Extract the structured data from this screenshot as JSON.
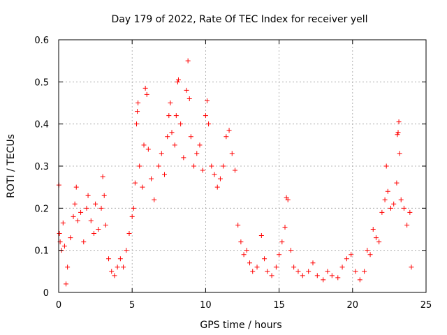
{
  "chart_data": {
    "type": "scatter",
    "title": "Day 179 of 2022, Rate Of TEC Index for receiver yell",
    "xlabel": "GPS time / hours",
    "ylabel": "ROTI / TECUs",
    "xlim": [
      0,
      25
    ],
    "ylim": [
      0,
      0.6
    ],
    "x_ticks": [
      "0",
      "5",
      "10",
      "15",
      "20",
      "25"
    ],
    "y_ticks": [
      "0",
      "0.1",
      "0.2",
      "0.3",
      "0.4",
      "0.5",
      "0.6"
    ],
    "x_tick_values": [
      0,
      5,
      10,
      15,
      20,
      25
    ],
    "y_tick_values": [
      0,
      0.1,
      0.2,
      0.3,
      0.4,
      0.5,
      0.6
    ],
    "grid": true,
    "marker": "+",
    "color": "#ff0000",
    "points": [
      [
        0.02,
        0.255
      ],
      [
        0.05,
        0.14
      ],
      [
        0.1,
        0.12
      ],
      [
        0.2,
        0.1
      ],
      [
        0.3,
        0.165
      ],
      [
        0.4,
        0.11
      ],
      [
        0.5,
        0.02
      ],
      [
        0.6,
        0.06
      ],
      [
        0.8,
        0.13
      ],
      [
        1.0,
        0.18
      ],
      [
        1.1,
        0.21
      ],
      [
        1.2,
        0.25
      ],
      [
        1.3,
        0.17
      ],
      [
        1.5,
        0.19
      ],
      [
        1.7,
        0.12
      ],
      [
        1.9,
        0.2
      ],
      [
        2.0,
        0.23
      ],
      [
        2.2,
        0.17
      ],
      [
        2.4,
        0.14
      ],
      [
        2.5,
        0.21
      ],
      [
        2.7,
        0.15
      ],
      [
        2.9,
        0.2
      ],
      [
        3.0,
        0.275
      ],
      [
        3.1,
        0.23
      ],
      [
        3.2,
        0.16
      ],
      [
        3.4,
        0.08
      ],
      [
        3.6,
        0.05
      ],
      [
        3.8,
        0.04
      ],
      [
        4.0,
        0.06
      ],
      [
        4.2,
        0.08
      ],
      [
        4.4,
        0.06
      ],
      [
        4.6,
        0.1
      ],
      [
        4.8,
        0.14
      ],
      [
        5.0,
        0.18
      ],
      [
        5.1,
        0.2
      ],
      [
        5.2,
        0.26
      ],
      [
        5.3,
        0.4
      ],
      [
        5.35,
        0.43
      ],
      [
        5.4,
        0.45
      ],
      [
        5.5,
        0.3
      ],
      [
        5.7,
        0.25
      ],
      [
        5.8,
        0.35
      ],
      [
        5.9,
        0.485
      ],
      [
        6.0,
        0.47
      ],
      [
        6.1,
        0.34
      ],
      [
        6.3,
        0.27
      ],
      [
        6.5,
        0.22
      ],
      [
        6.8,
        0.3
      ],
      [
        7.0,
        0.33
      ],
      [
        7.2,
        0.28
      ],
      [
        7.4,
        0.37
      ],
      [
        7.5,
        0.42
      ],
      [
        7.6,
        0.45
      ],
      [
        7.7,
        0.38
      ],
      [
        7.9,
        0.35
      ],
      [
        8.0,
        0.42
      ],
      [
        8.1,
        0.5
      ],
      [
        8.15,
        0.505
      ],
      [
        8.3,
        0.4
      ],
      [
        8.5,
        0.32
      ],
      [
        8.7,
        0.48
      ],
      [
        8.8,
        0.55
      ],
      [
        8.9,
        0.46
      ],
      [
        9.0,
        0.37
      ],
      [
        9.2,
        0.3
      ],
      [
        9.4,
        0.33
      ],
      [
        9.6,
        0.35
      ],
      [
        9.8,
        0.29
      ],
      [
        10.0,
        0.42
      ],
      [
        10.1,
        0.455
      ],
      [
        10.2,
        0.4
      ],
      [
        10.4,
        0.3
      ],
      [
        10.6,
        0.28
      ],
      [
        10.8,
        0.25
      ],
      [
        11.0,
        0.27
      ],
      [
        11.2,
        0.3
      ],
      [
        11.4,
        0.37
      ],
      [
        11.6,
        0.385
      ],
      [
        11.8,
        0.33
      ],
      [
        12.0,
        0.29
      ],
      [
        12.2,
        0.16
      ],
      [
        12.4,
        0.12
      ],
      [
        12.6,
        0.09
      ],
      [
        12.8,
        0.1
      ],
      [
        13.0,
        0.07
      ],
      [
        13.2,
        0.05
      ],
      [
        13.5,
        0.06
      ],
      [
        13.8,
        0.135
      ],
      [
        14.0,
        0.08
      ],
      [
        14.2,
        0.05
      ],
      [
        14.5,
        0.04
      ],
      [
        14.8,
        0.06
      ],
      [
        15.0,
        0.09
      ],
      [
        15.2,
        0.12
      ],
      [
        15.4,
        0.155
      ],
      [
        15.5,
        0.225
      ],
      [
        15.6,
        0.22
      ],
      [
        15.8,
        0.1
      ],
      [
        16.0,
        0.06
      ],
      [
        16.3,
        0.05
      ],
      [
        16.6,
        0.04
      ],
      [
        17.0,
        0.05
      ],
      [
        17.3,
        0.07
      ],
      [
        17.6,
        0.04
      ],
      [
        18.0,
        0.03
      ],
      [
        18.3,
        0.05
      ],
      [
        18.6,
        0.04
      ],
      [
        19.0,
        0.035
      ],
      [
        19.3,
        0.06
      ],
      [
        19.6,
        0.08
      ],
      [
        19.9,
        0.09
      ],
      [
        20.2,
        0.05
      ],
      [
        20.5,
        0.03
      ],
      [
        20.8,
        0.05
      ],
      [
        21.0,
        0.1
      ],
      [
        21.2,
        0.09
      ],
      [
        21.4,
        0.15
      ],
      [
        21.6,
        0.13
      ],
      [
        21.8,
        0.12
      ],
      [
        22.0,
        0.19
      ],
      [
        22.2,
        0.22
      ],
      [
        22.3,
        0.3
      ],
      [
        22.4,
        0.24
      ],
      [
        22.6,
        0.2
      ],
      [
        22.8,
        0.21
      ],
      [
        23.0,
        0.26
      ],
      [
        23.05,
        0.375
      ],
      [
        23.1,
        0.38
      ],
      [
        23.15,
        0.405
      ],
      [
        23.2,
        0.33
      ],
      [
        23.3,
        0.22
      ],
      [
        23.5,
        0.2
      ],
      [
        23.7,
        0.16
      ],
      [
        23.9,
        0.19
      ],
      [
        24.0,
        0.06
      ]
    ]
  }
}
